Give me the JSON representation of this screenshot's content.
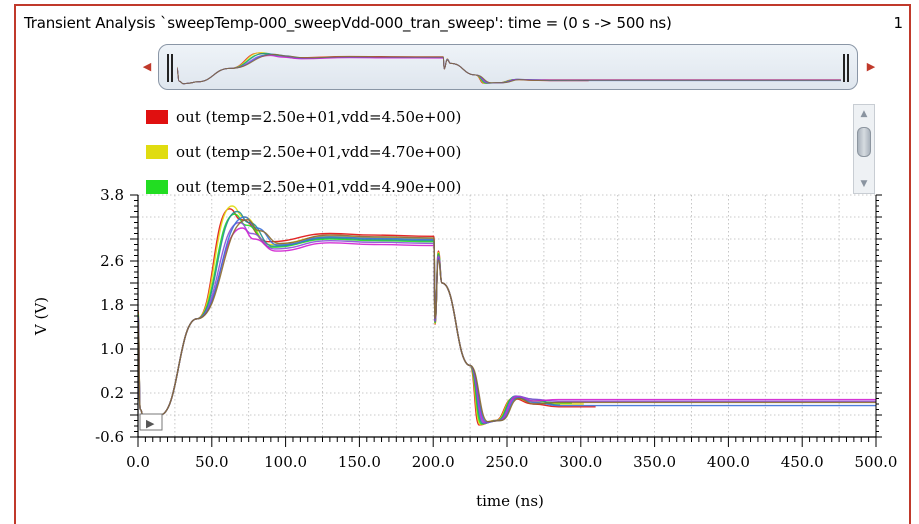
{
  "window": {
    "title": "Transient Analysis `sweepTemp-000_sweepVdd-000_tran_sweep': time = (0 s -> 500 ns)",
    "page_number": "1"
  },
  "overview": {
    "left_arrow_icon": "left-triangle-icon",
    "right_arrow_icon": "right-triangle-icon"
  },
  "legend": [
    {
      "label": "out (temp=2.50e+01,vdd=4.50e+00)",
      "color": "#e01010"
    },
    {
      "label": "out (temp=2.50e+01,vdd=4.70e+00)",
      "color": "#e0dc10"
    },
    {
      "label": "out (temp=2.50e+01,vdd=4.90e+00)",
      "color": "#22dd22"
    }
  ],
  "chart_data": {
    "type": "line",
    "title": "",
    "xlabel": "time (ns)",
    "ylabel": "V (V)",
    "xlim": [
      0,
      500
    ],
    "ylim": [
      -0.6,
      3.8
    ],
    "x_ticks": [
      "0.0",
      "50.0",
      "100.0",
      "150.0",
      "200.0",
      "250.0",
      "300.0",
      "350.0",
      "400.0",
      "450.0",
      "500.0"
    ],
    "y_ticks": [
      "-0.6",
      "0.2",
      "1.0",
      "1.8",
      "2.6",
      "3.8"
    ],
    "grid": true,
    "series": [
      {
        "name": "out (temp=2.50e+01,vdd=4.50e+00)",
        "color": "#e01010",
        "peak": 3.55,
        "plateau": 3.05,
        "final": -0.05
      },
      {
        "name": "out (temp=2.50e+01,vdd=4.70e+00)",
        "color": "#e0dc10",
        "peak": 3.6,
        "plateau": 3.0,
        "final": 0.0
      },
      {
        "name": "out (temp=2.50e+01,vdd=4.90e+00)",
        "color": "#22dd22",
        "peak": 3.45,
        "plateau": 2.95,
        "final": 0.02
      },
      {
        "color": "#1f8f8f",
        "peak": 3.5,
        "plateau": 2.97,
        "final": -0.02
      },
      {
        "color": "#8a4fd8",
        "peak": 3.3,
        "plateau": 2.92,
        "final": 0.05
      },
      {
        "color": "#d01fd0",
        "peak": 3.2,
        "plateau": 2.88,
        "final": 0.08
      },
      {
        "color": "#3a6fd8",
        "peak": 3.4,
        "plateau": 2.99,
        "final": -0.03
      },
      {
        "color": "#8a6a30",
        "peak": 3.35,
        "plateau": 3.02,
        "final": 0.03
      }
    ],
    "waveform_points_ns": [
      0,
      2,
      5,
      10,
      15,
      70,
      95,
      200,
      201,
      203,
      206,
      235,
      242,
      255,
      275,
      310,
      500
    ]
  }
}
